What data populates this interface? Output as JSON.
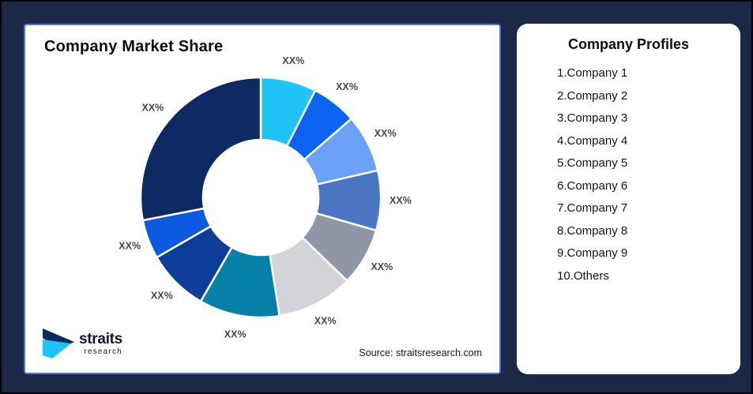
{
  "window": {
    "background": "#1b2946",
    "outer_border": "#000000"
  },
  "chart_panel": {
    "title": "Company Market Share",
    "source": "Source: straitsresearch.com",
    "border_color": "#4d77d1"
  },
  "logo": {
    "name": "straits",
    "sub": "research",
    "mark_navy": "#0e2a5c",
    "mark_cyan": "#21c3f7"
  },
  "profiles_panel": {
    "title": "Company Profiles",
    "items": [
      "1.Company 1",
      "2.Company 2",
      "3.Company 3",
      "4.Company 4",
      "5.Company 5",
      "6.Company 6",
      "7.Company 7",
      "8.Company 8",
      "9.Company 9",
      "10.Others"
    ]
  },
  "chart_data": {
    "type": "pie",
    "subtype": "donut",
    "title": "Company Market Share",
    "note": "All slice data labels are shown as placeholder text XX%",
    "label_text": "XX%",
    "label_color": "#43474e",
    "outer_radius": 152,
    "inner_radius": 73,
    "label_radius": 177,
    "start_at_deg": 0,
    "direction": "clockwise",
    "segments": [
      {
        "company": "Company 1",
        "label": "XX%",
        "start_deg": 0,
        "end_deg": 27,
        "est_percent": 7.5,
        "color": "#21c3f7"
      },
      {
        "company": "Company 2",
        "label": "XX%",
        "start_deg": 27,
        "end_deg": 49,
        "est_percent": 6.1,
        "color": "#0a64f0"
      },
      {
        "company": "Company 3",
        "label": "XX%",
        "start_deg": 49,
        "end_deg": 77,
        "est_percent": 7.8,
        "color": "#6ba1f7"
      },
      {
        "company": "Company 4",
        "label": "XX%",
        "start_deg": 77,
        "end_deg": 106,
        "est_percent": 8.1,
        "color": "#4a76c4"
      },
      {
        "company": "Company 5",
        "label": "XX%",
        "start_deg": 106,
        "end_deg": 134,
        "est_percent": 7.8,
        "color": "#8f96a6"
      },
      {
        "company": "Company 6",
        "label": "XX%",
        "start_deg": 134,
        "end_deg": 171,
        "est_percent": 10.3,
        "color": "#d2d4da"
      },
      {
        "company": "Company 7",
        "label": "XX%",
        "start_deg": 171,
        "end_deg": 210,
        "est_percent": 10.8,
        "color": "#0680a6"
      },
      {
        "company": "Company 8",
        "label": "XX%",
        "start_deg": 210,
        "end_deg": 240,
        "est_percent": 8.3,
        "color": "#0c3d98"
      },
      {
        "company": "Company 9",
        "label": "XX%",
        "start_deg": 240,
        "end_deg": 259,
        "est_percent": 5.3,
        "color": "#0d5ae0"
      },
      {
        "company": "Others",
        "label": "XX%",
        "start_deg": 259,
        "end_deg": 360,
        "est_percent": 28.0,
        "color": "#0d2a63"
      }
    ]
  }
}
